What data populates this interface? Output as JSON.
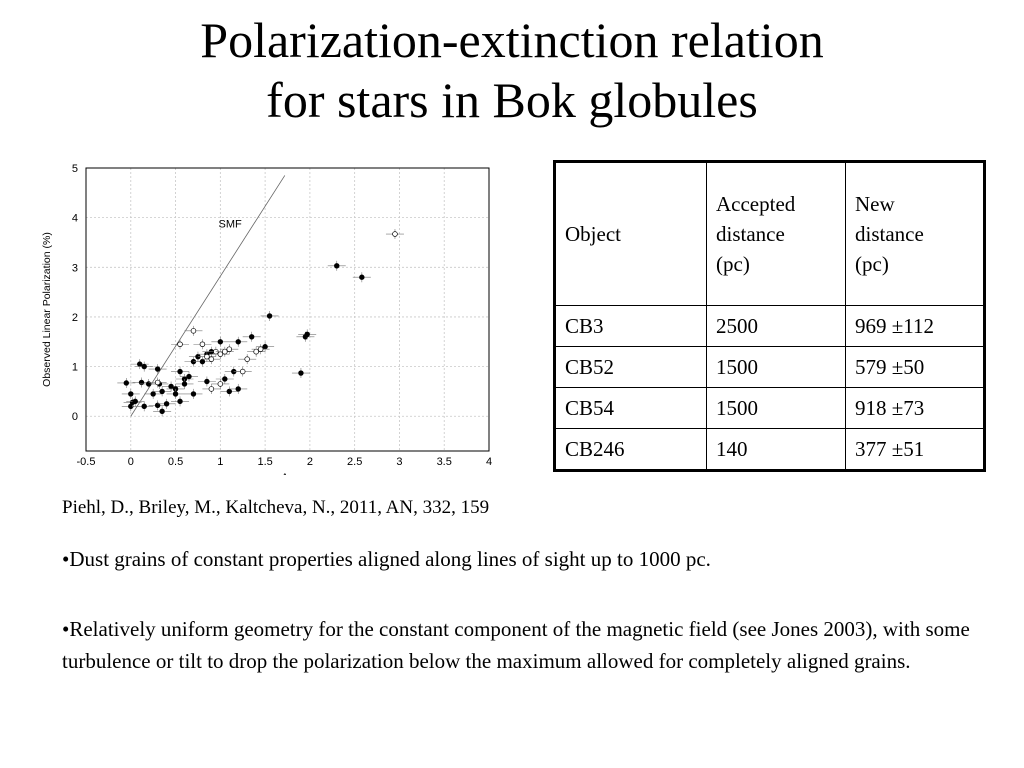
{
  "title": {
    "line1": "Polarization-extinction relation",
    "line2": "for stars in Bok globules"
  },
  "citation": "Piehl, D., Briley, M., Kaltcheva, N., 2011, AN, 332, 159",
  "bullets": [
    "•Dust grains of constant properties aligned along lines of sight up to 1000 pc.",
    "•Relatively uniform geometry for the constant component of the magnetic field (see Jones 2003), with some turbulence or tilt to drop the polarization below the maximum allowed for completely aligned grains."
  ],
  "table": {
    "header": {
      "object": "Object",
      "accepted": [
        "Accepted",
        "distance",
        "(pc)"
      ],
      "new": [
        "New",
        "distance",
        "(pc)"
      ]
    },
    "rows": [
      [
        "CB3",
        "2500",
        "969 ±112"
      ],
      [
        "CB52",
        "1500",
        "579 ±50"
      ],
      [
        "CB54",
        "1500",
        "918 ±73"
      ],
      [
        "CB246",
        "140",
        "377 ±51"
      ]
    ]
  },
  "chart_data": {
    "type": "scatter",
    "xlabel": "Av",
    "ylabel": "Observed Linear Polarization (%)",
    "xlim": [
      -0.5,
      4
    ],
    "ylim": [
      -0.7,
      5
    ],
    "xticks": [
      "-0.5",
      "0",
      "0.5",
      "1",
      "1.5",
      "2",
      "2.5",
      "3",
      "3.5",
      "4"
    ],
    "yticks": [
      "0",
      "1",
      "2",
      "3",
      "4",
      "5"
    ],
    "grid": true,
    "annotation": "SMF",
    "reference_line": {
      "x": [
        0,
        1.72
      ],
      "y": [
        0,
        4.85
      ]
    },
    "series": [
      {
        "marker": "filled",
        "points": [
          [
            -0.05,
            0.67
          ],
          [
            0.0,
            0.2
          ],
          [
            0.02,
            0.28
          ],
          [
            0.0,
            0.45
          ],
          [
            0.05,
            0.3
          ],
          [
            0.1,
            1.05
          ],
          [
            0.15,
            1.0
          ],
          [
            0.12,
            0.68
          ],
          [
            0.2,
            0.65
          ],
          [
            0.15,
            0.2
          ],
          [
            0.25,
            0.45
          ],
          [
            0.3,
            0.95
          ],
          [
            0.32,
            0.65
          ],
          [
            0.35,
            0.5
          ],
          [
            0.3,
            0.22
          ],
          [
            0.35,
            0.1
          ],
          [
            0.4,
            0.25
          ],
          [
            0.45,
            0.6
          ],
          [
            0.5,
            0.55
          ],
          [
            0.5,
            0.45
          ],
          [
            0.55,
            0.3
          ],
          [
            0.55,
            0.9
          ],
          [
            0.6,
            0.75
          ],
          [
            0.6,
            0.65
          ],
          [
            0.65,
            0.8
          ],
          [
            0.7,
            1.1
          ],
          [
            0.75,
            1.2
          ],
          [
            0.8,
            1.1
          ],
          [
            0.85,
            1.25
          ],
          [
            0.9,
            1.3
          ],
          [
            0.7,
            0.45
          ],
          [
            0.85,
            0.7
          ],
          [
            1.0,
            1.5
          ],
          [
            1.05,
            0.75
          ],
          [
            1.1,
            0.5
          ],
          [
            1.15,
            0.9
          ],
          [
            1.2,
            0.55
          ],
          [
            1.2,
            1.5
          ],
          [
            1.35,
            1.6
          ],
          [
            1.5,
            1.4
          ],
          [
            1.55,
            2.02
          ],
          [
            1.95,
            1.6
          ],
          [
            1.97,
            1.65
          ],
          [
            1.9,
            0.87
          ],
          [
            2.3,
            3.03
          ],
          [
            2.58,
            2.8
          ]
        ]
      },
      {
        "marker": "open",
        "points": [
          [
            0.3,
            0.68
          ],
          [
            0.55,
            1.45
          ],
          [
            0.7,
            1.72
          ],
          [
            0.85,
            1.2
          ],
          [
            0.9,
            1.15
          ],
          [
            0.95,
            1.3
          ],
          [
            1.0,
            1.25
          ],
          [
            1.05,
            1.3
          ],
          [
            1.1,
            1.35
          ],
          [
            1.3,
            1.15
          ],
          [
            1.4,
            1.3
          ],
          [
            1.45,
            1.35
          ],
          [
            0.8,
            1.45
          ],
          [
            0.9,
            0.55
          ],
          [
            1.0,
            0.65
          ],
          [
            1.25,
            0.9
          ],
          [
            2.95,
            3.67
          ]
        ]
      }
    ]
  }
}
